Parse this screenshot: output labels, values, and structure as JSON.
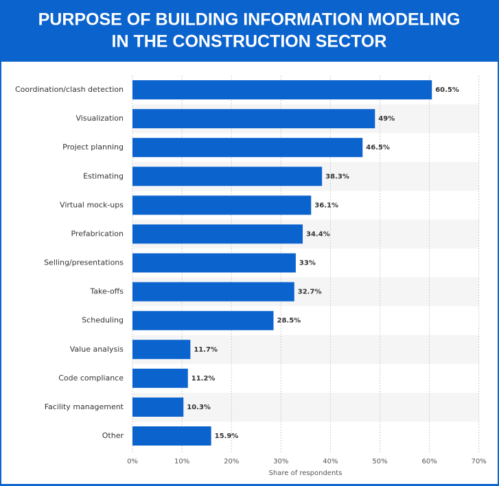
{
  "chart_data": {
    "type": "bar",
    "orientation": "horizontal",
    "title": [
      "PURPOSE OF BUILDING INFORMATION MODELING",
      "IN THE CONSTRUCTION SECTOR"
    ],
    "x_label": "Share of respondents",
    "categories": [
      "Coordination/clash detection",
      "Visualization",
      "Project planning",
      "Estimating",
      "Virtual mock-ups",
      "Prefabrication",
      "Selling/presentations",
      "Take-offs",
      "Scheduling",
      "Value analysis",
      "Code compliance",
      "Facility management",
      "Other"
    ],
    "values": [
      60.5,
      49,
      46.5,
      38.3,
      36.1,
      34.4,
      33,
      32.7,
      28.5,
      11.7,
      11.2,
      10.3,
      15.9
    ],
    "value_labels": [
      "60.5%",
      "49%",
      "46.5%",
      "38.3%",
      "36.1%",
      "34.4%",
      "33%",
      "32.7%",
      "28.5%",
      "11.7%",
      "11.2%",
      "10.3%",
      "15.9%"
    ],
    "color": "#0b63ce",
    "xlim": [
      0,
      70
    ],
    "xticks": [
      {
        "value": 0,
        "label": "0%"
      },
      {
        "value": 10,
        "label": "10%"
      },
      {
        "value": 20,
        "label": "20%"
      },
      {
        "value": 30,
        "label": "30%"
      },
      {
        "value": 40,
        "label": "40%"
      },
      {
        "value": 50,
        "label": "50%"
      },
      {
        "value": 60,
        "label": "60%"
      },
      {
        "value": 70,
        "label": "70%"
      }
    ],
    "grid": true
  }
}
